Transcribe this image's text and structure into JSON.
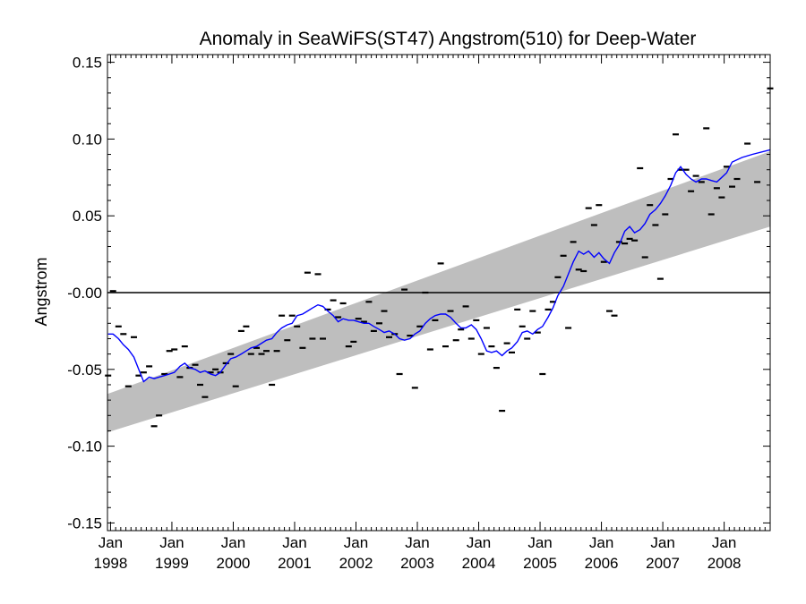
{
  "chart_data": {
    "type": "scatter",
    "title": "Anomaly in SeaWiFS(ST47) Angstrom(510) for Deep-Water",
    "ylabel": "Angstrom",
    "xlabel": "",
    "ylim": [
      -0.155,
      0.155
    ],
    "xlim": [
      1997.95,
      2008.75
    ],
    "y_ticks": [
      {
        "value": 0.15,
        "label": "0.15"
      },
      {
        "value": 0.1,
        "label": "0.10"
      },
      {
        "value": 0.05,
        "label": "0.05"
      },
      {
        "value": 0.0,
        "label": "-0.00"
      },
      {
        "value": -0.05,
        "label": "-0.05"
      },
      {
        "value": -0.1,
        "label": "-0.10"
      },
      {
        "value": -0.15,
        "label": "-0.15"
      }
    ],
    "x_ticks": [
      {
        "value": 1998,
        "month": "Jan",
        "year": "1998"
      },
      {
        "value": 1999,
        "month": "Jan",
        "year": "1999"
      },
      {
        "value": 2000,
        "month": "Jan",
        "year": "2000"
      },
      {
        "value": 2001,
        "month": "Jan",
        "year": "2001"
      },
      {
        "value": 2002,
        "month": "Jan",
        "year": "2002"
      },
      {
        "value": 2003,
        "month": "Jan",
        "year": "2003"
      },
      {
        "value": 2004,
        "month": "Jan",
        "year": "2004"
      },
      {
        "value": 2005,
        "month": "Jan",
        "year": "2005"
      },
      {
        "value": 2006,
        "month": "Jan",
        "year": "2006"
      },
      {
        "value": 2007,
        "month": "Jan",
        "year": "2007"
      },
      {
        "value": 2008,
        "month": "Jan",
        "year": "2008"
      }
    ],
    "zero_line": 0,
    "trend_band": {
      "upper": [
        [
          1997.95,
          -0.066
        ],
        [
          2008.75,
          0.092
        ]
      ],
      "lower": [
        [
          1997.95,
          -0.091
        ],
        [
          2008.75,
          0.043
        ]
      ]
    },
    "colors": {
      "running_mean": "#0000ff",
      "band": "#bebebe",
      "points": "#000000"
    },
    "monthly_points": [
      [
        1997.96,
        -0.054
      ],
      [
        1998.04,
        0.001
      ],
      [
        1998.13,
        -0.022
      ],
      [
        1998.21,
        -0.027
      ],
      [
        1998.29,
        -0.061
      ],
      [
        1998.38,
        -0.029
      ],
      [
        1998.46,
        -0.054
      ],
      [
        1998.54,
        -0.052
      ],
      [
        1998.63,
        -0.048
      ],
      [
        1998.71,
        -0.087
      ],
      [
        1998.79,
        -0.08
      ],
      [
        1998.88,
        -0.053
      ],
      [
        1998.96,
        -0.038
      ],
      [
        1999.04,
        -0.037
      ],
      [
        1999.13,
        -0.055
      ],
      [
        1999.21,
        -0.035
      ],
      [
        1999.29,
        -0.049
      ],
      [
        1999.38,
        -0.047
      ],
      [
        1999.46,
        -0.06
      ],
      [
        1999.54,
        -0.068
      ],
      [
        1999.63,
        -0.052
      ],
      [
        1999.71,
        -0.05
      ],
      [
        1999.79,
        -0.052
      ],
      [
        1999.88,
        -0.046
      ],
      [
        1999.96,
        -0.04
      ],
      [
        2000.04,
        -0.061
      ],
      [
        2000.13,
        -0.025
      ],
      [
        2000.21,
        -0.022
      ],
      [
        2000.29,
        -0.04
      ],
      [
        2000.38,
        -0.036
      ],
      [
        2000.46,
        -0.04
      ],
      [
        2000.54,
        -0.038
      ],
      [
        2000.63,
        -0.06
      ],
      [
        2000.71,
        -0.038
      ],
      [
        2000.79,
        -0.015
      ],
      [
        2000.88,
        -0.031
      ],
      [
        2000.96,
        -0.015
      ],
      [
        2001.04,
        -0.022
      ],
      [
        2001.13,
        -0.036
      ],
      [
        2001.21,
        0.013
      ],
      [
        2001.29,
        -0.03
      ],
      [
        2001.38,
        0.012
      ],
      [
        2001.46,
        -0.03
      ],
      [
        2001.54,
        -0.011
      ],
      [
        2001.63,
        -0.005
      ],
      [
        2001.71,
        -0.016
      ],
      [
        2001.79,
        -0.007
      ],
      [
        2001.88,
        -0.035
      ],
      [
        2001.96,
        -0.032
      ],
      [
        2002.04,
        -0.017
      ],
      [
        2002.13,
        -0.019
      ],
      [
        2002.21,
        -0.006
      ],
      [
        2002.29,
        -0.025
      ],
      [
        2002.38,
        -0.02
      ],
      [
        2002.46,
        -0.012
      ],
      [
        2002.54,
        -0.029
      ],
      [
        2002.63,
        -0.027
      ],
      [
        2002.71,
        -0.053
      ],
      [
        2002.79,
        0.002
      ],
      [
        2002.88,
        -0.028
      ],
      [
        2002.96,
        -0.062
      ],
      [
        2003.04,
        -0.022
      ],
      [
        2003.13,
        0.0
      ],
      [
        2003.21,
        -0.037
      ],
      [
        2003.29,
        -0.018
      ],
      [
        2003.38,
        0.019
      ],
      [
        2003.46,
        -0.035
      ],
      [
        2003.54,
        -0.012
      ],
      [
        2003.63,
        -0.031
      ],
      [
        2003.71,
        -0.024
      ],
      [
        2003.79,
        -0.009
      ],
      [
        2003.88,
        -0.03
      ],
      [
        2003.96,
        -0.018
      ],
      [
        2004.04,
        -0.04
      ],
      [
        2004.13,
        -0.023
      ],
      [
        2004.21,
        -0.035
      ],
      [
        2004.29,
        -0.049
      ],
      [
        2004.38,
        -0.077
      ],
      [
        2004.46,
        -0.033
      ],
      [
        2004.54,
        -0.039
      ],
      [
        2004.63,
        -0.011
      ],
      [
        2004.71,
        -0.022
      ],
      [
        2004.79,
        -0.03
      ],
      [
        2004.88,
        -0.012
      ],
      [
        2004.96,
        -0.026
      ],
      [
        2005.04,
        -0.053
      ],
      [
        2005.13,
        -0.011
      ],
      [
        2005.21,
        -0.006
      ],
      [
        2005.29,
        0.01
      ],
      [
        2005.38,
        0.024
      ],
      [
        2005.46,
        -0.023
      ],
      [
        2005.54,
        0.033
      ],
      [
        2005.63,
        0.015
      ],
      [
        2005.71,
        0.014
      ],
      [
        2005.79,
        0.055
      ],
      [
        2005.88,
        0.044
      ],
      [
        2005.96,
        0.057
      ],
      [
        2006.04,
        0.02
      ],
      [
        2006.13,
        -0.012
      ],
      [
        2006.21,
        -0.015
      ],
      [
        2006.29,
        0.033
      ],
      [
        2006.38,
        0.032
      ],
      [
        2006.46,
        0.035
      ],
      [
        2006.54,
        0.034
      ],
      [
        2006.63,
        0.081
      ],
      [
        2006.71,
        0.023
      ],
      [
        2006.79,
        0.057
      ],
      [
        2006.88,
        0.044
      ],
      [
        2006.96,
        0.009
      ],
      [
        2007.04,
        0.051
      ],
      [
        2007.13,
        0.074
      ],
      [
        2007.21,
        0.103
      ],
      [
        2007.29,
        0.08
      ],
      [
        2007.38,
        0.08
      ],
      [
        2007.46,
        0.066
      ],
      [
        2007.54,
        0.076
      ],
      [
        2007.63,
        0.072
      ],
      [
        2007.71,
        0.107
      ],
      [
        2007.79,
        0.051
      ],
      [
        2007.88,
        0.068
      ],
      [
        2007.96,
        0.062
      ],
      [
        2008.04,
        0.082
      ],
      [
        2008.13,
        0.069
      ],
      [
        2008.21,
        0.074
      ],
      [
        2008.38,
        0.097
      ],
      [
        2008.54,
        0.072
      ],
      [
        2008.75,
        0.133
      ]
    ],
    "running_mean": [
      [
        1997.96,
        -0.027
      ],
      [
        1998.04,
        -0.027
      ],
      [
        1998.13,
        -0.03
      ],
      [
        1998.21,
        -0.034
      ],
      [
        1998.29,
        -0.037
      ],
      [
        1998.38,
        -0.042
      ],
      [
        1998.46,
        -0.05
      ],
      [
        1998.54,
        -0.058
      ],
      [
        1998.63,
        -0.055
      ],
      [
        1998.71,
        -0.056
      ],
      [
        1998.79,
        -0.055
      ],
      [
        1998.88,
        -0.054
      ],
      [
        1998.96,
        -0.053
      ],
      [
        1999.04,
        -0.052
      ],
      [
        1999.13,
        -0.048
      ],
      [
        1999.21,
        -0.046
      ],
      [
        1999.29,
        -0.049
      ],
      [
        1999.38,
        -0.05
      ],
      [
        1999.46,
        -0.052
      ],
      [
        1999.54,
        -0.051
      ],
      [
        1999.63,
        -0.053
      ],
      [
        1999.71,
        -0.054
      ],
      [
        1999.79,
        -0.052
      ],
      [
        1999.88,
        -0.047
      ],
      [
        1999.96,
        -0.043
      ],
      [
        2000.04,
        -0.042
      ],
      [
        2000.13,
        -0.04
      ],
      [
        2000.21,
        -0.038
      ],
      [
        2000.29,
        -0.036
      ],
      [
        2000.38,
        -0.035
      ],
      [
        2000.46,
        -0.033
      ],
      [
        2000.54,
        -0.031
      ],
      [
        2000.63,
        -0.03
      ],
      [
        2000.71,
        -0.026
      ],
      [
        2000.79,
        -0.023
      ],
      [
        2000.88,
        -0.021
      ],
      [
        2000.96,
        -0.02
      ],
      [
        2001.04,
        -0.015
      ],
      [
        2001.13,
        -0.014
      ],
      [
        2001.21,
        -0.012
      ],
      [
        2001.29,
        -0.01
      ],
      [
        2001.38,
        -0.008
      ],
      [
        2001.46,
        -0.009
      ],
      [
        2001.54,
        -0.012
      ],
      [
        2001.63,
        -0.015
      ],
      [
        2001.71,
        -0.019
      ],
      [
        2001.79,
        -0.017
      ],
      [
        2001.88,
        -0.018
      ],
      [
        2001.96,
        -0.018
      ],
      [
        2002.04,
        -0.019
      ],
      [
        2002.13,
        -0.02
      ],
      [
        2002.21,
        -0.02
      ],
      [
        2002.29,
        -0.022
      ],
      [
        2002.38,
        -0.024
      ],
      [
        2002.46,
        -0.026
      ],
      [
        2002.54,
        -0.025
      ],
      [
        2002.63,
        -0.027
      ],
      [
        2002.71,
        -0.03
      ],
      [
        2002.79,
        -0.031
      ],
      [
        2002.88,
        -0.03
      ],
      [
        2002.96,
        -0.027
      ],
      [
        2003.04,
        -0.025
      ],
      [
        2003.13,
        -0.02
      ],
      [
        2003.21,
        -0.017
      ],
      [
        2003.29,
        -0.015
      ],
      [
        2003.38,
        -0.014
      ],
      [
        2003.46,
        -0.014
      ],
      [
        2003.54,
        -0.016
      ],
      [
        2003.63,
        -0.02
      ],
      [
        2003.71,
        -0.023
      ],
      [
        2003.79,
        -0.023
      ],
      [
        2003.88,
        -0.021
      ],
      [
        2003.96,
        -0.024
      ],
      [
        2004.04,
        -0.03
      ],
      [
        2004.13,
        -0.038
      ],
      [
        2004.21,
        -0.039
      ],
      [
        2004.29,
        -0.038
      ],
      [
        2004.38,
        -0.041
      ],
      [
        2004.46,
        -0.038
      ],
      [
        2004.54,
        -0.036
      ],
      [
        2004.63,
        -0.032
      ],
      [
        2004.71,
        -0.026
      ],
      [
        2004.79,
        -0.025
      ],
      [
        2004.88,
        -0.027
      ],
      [
        2004.96,
        -0.024
      ],
      [
        2005.04,
        -0.022
      ],
      [
        2005.13,
        -0.016
      ],
      [
        2005.21,
        -0.01
      ],
      [
        2005.29,
        -0.002
      ],
      [
        2005.38,
        0.004
      ],
      [
        2005.46,
        0.012
      ],
      [
        2005.54,
        0.02
      ],
      [
        2005.63,
        0.027
      ],
      [
        2005.71,
        0.025
      ],
      [
        2005.79,
        0.027
      ],
      [
        2005.88,
        0.023
      ],
      [
        2005.96,
        0.026
      ],
      [
        2006.04,
        0.022
      ],
      [
        2006.13,
        0.019
      ],
      [
        2006.21,
        0.026
      ],
      [
        2006.29,
        0.031
      ],
      [
        2006.38,
        0.04
      ],
      [
        2006.46,
        0.043
      ],
      [
        2006.54,
        0.039
      ],
      [
        2006.63,
        0.041
      ],
      [
        2006.71,
        0.045
      ],
      [
        2006.79,
        0.051
      ],
      [
        2006.88,
        0.054
      ],
      [
        2006.96,
        0.058
      ],
      [
        2007.04,
        0.063
      ],
      [
        2007.13,
        0.07
      ],
      [
        2007.21,
        0.078
      ],
      [
        2007.29,
        0.082
      ],
      [
        2007.38,
        0.077
      ],
      [
        2007.46,
        0.074
      ],
      [
        2007.54,
        0.072
      ],
      [
        2007.63,
        0.074
      ],
      [
        2007.71,
        0.074
      ],
      [
        2007.79,
        0.073
      ],
      [
        2007.88,
        0.072
      ],
      [
        2007.96,
        0.075
      ],
      [
        2008.04,
        0.078
      ],
      [
        2008.13,
        0.085
      ],
      [
        2008.29,
        0.088
      ],
      [
        2008.46,
        0.09
      ],
      [
        2008.75,
        0.093
      ]
    ]
  }
}
